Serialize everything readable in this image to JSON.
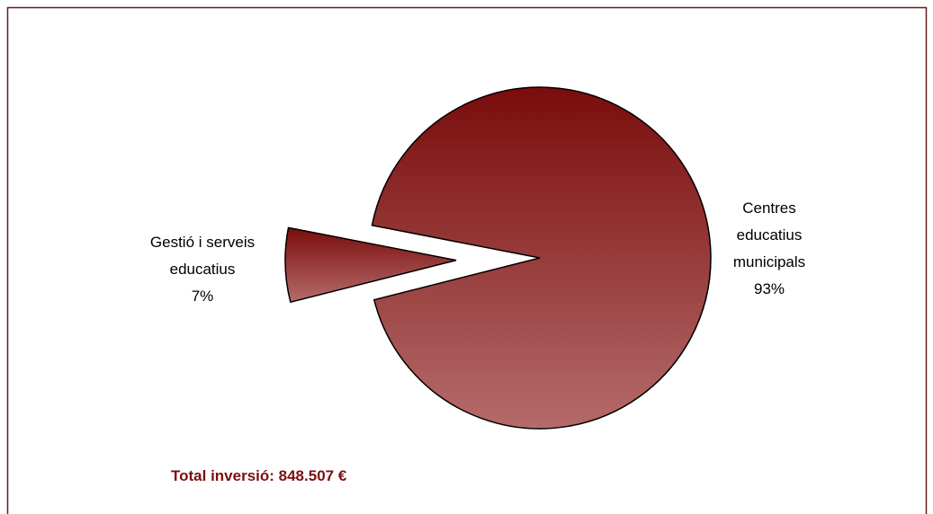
{
  "chart_data": {
    "type": "pie",
    "categories": [
      "Centres educatius municipals",
      "Gestió i serveis educatius"
    ],
    "values": [
      93,
      7
    ],
    "value_labels": [
      "93%",
      "7%"
    ],
    "colors": [
      "#7a0c0c",
      "#b56b6b"
    ],
    "annotation": "Total inversió: 848.507 €"
  }
}
